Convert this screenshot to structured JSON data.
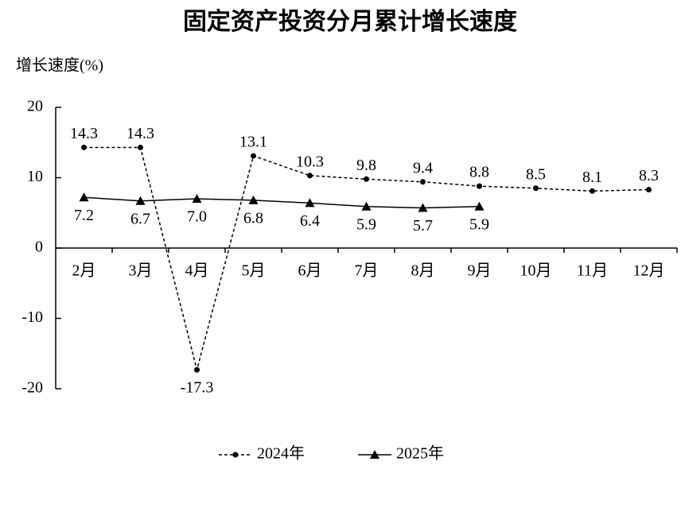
{
  "chart_data": {
    "type": "line",
    "title": "固定资产投资分月累计增长速度",
    "y_axis_label": "增长速度(%)",
    "categories": [
      "2月",
      "3月",
      "4月",
      "5月",
      "6月",
      "7月",
      "8月",
      "9月",
      "10月",
      "11月",
      "12月"
    ],
    "series": [
      {
        "name": "2024年",
        "color": "#000000",
        "line_style": "dashed",
        "marker": "circle",
        "values": [
          14.3,
          14.3,
          -17.3,
          13.1,
          10.3,
          9.8,
          9.4,
          8.8,
          8.5,
          8.1,
          8.3
        ]
      },
      {
        "name": "2025年",
        "color": "#000000",
        "line_style": "solid",
        "marker": "triangle",
        "values": [
          7.2,
          6.7,
          7,
          6.8,
          6.4,
          5.9,
          5.7,
          5.9,
          null,
          null,
          null
        ],
        "value_labels": [
          "7.2",
          "6.7",
          "7.0",
          "6.8",
          "6.4",
          "5.9",
          "5.7",
          "5.9",
          null,
          null,
          null
        ]
      }
    ],
    "ylim": [
      -20,
      20
    ],
    "yticks": [
      -20,
      -10,
      0,
      10,
      20
    ],
    "grid": false,
    "legend": "bottom"
  }
}
